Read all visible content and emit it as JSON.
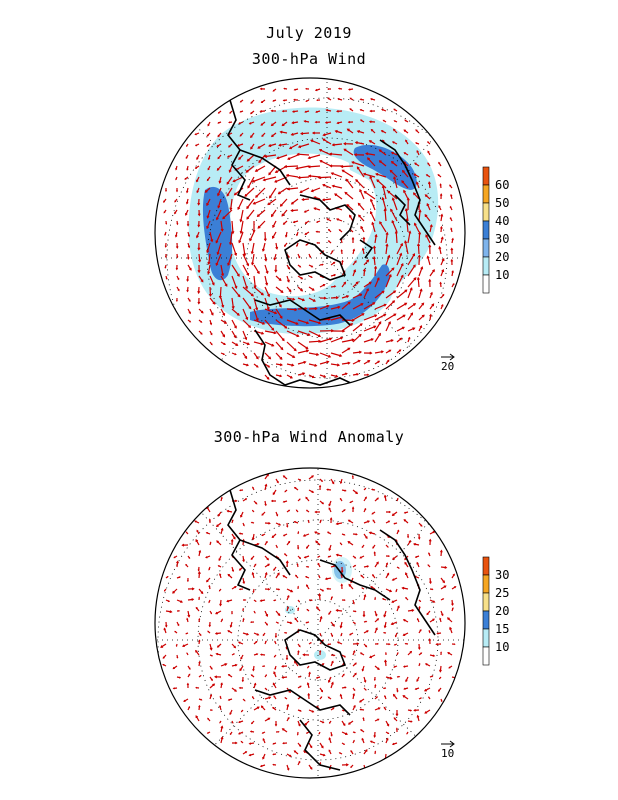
{
  "header": {
    "title": "July 2019",
    "panel1_title": "300-hPa Wind",
    "panel2_title": "300-hPa Wind Anomaly"
  },
  "panel1": {
    "colorbar_labels": [
      "60",
      "50",
      "40",
      "30",
      "20",
      "10"
    ],
    "colorbar_colors": [
      "#e8530f",
      "#f5a623",
      "#f7e08a",
      "#3b7fd6",
      "#7fb4ec",
      "#b8ecf5",
      "#ffffff"
    ],
    "reference_vector": "20",
    "reference_vector_overline": "→"
  },
  "panel2": {
    "colorbar_labels": [
      "30",
      "25",
      "20",
      "15",
      "10"
    ],
    "colorbar_colors": [
      "#e8530f",
      "#f5a623",
      "#f7e08a",
      "#3b7fd6",
      "#b8ecf5",
      "#ffffff"
    ],
    "reference_vector": "10"
  },
  "style": {
    "vector_color": "#cc0000",
    "coast_color": "#000000",
    "grid_color": "#000000"
  }
}
